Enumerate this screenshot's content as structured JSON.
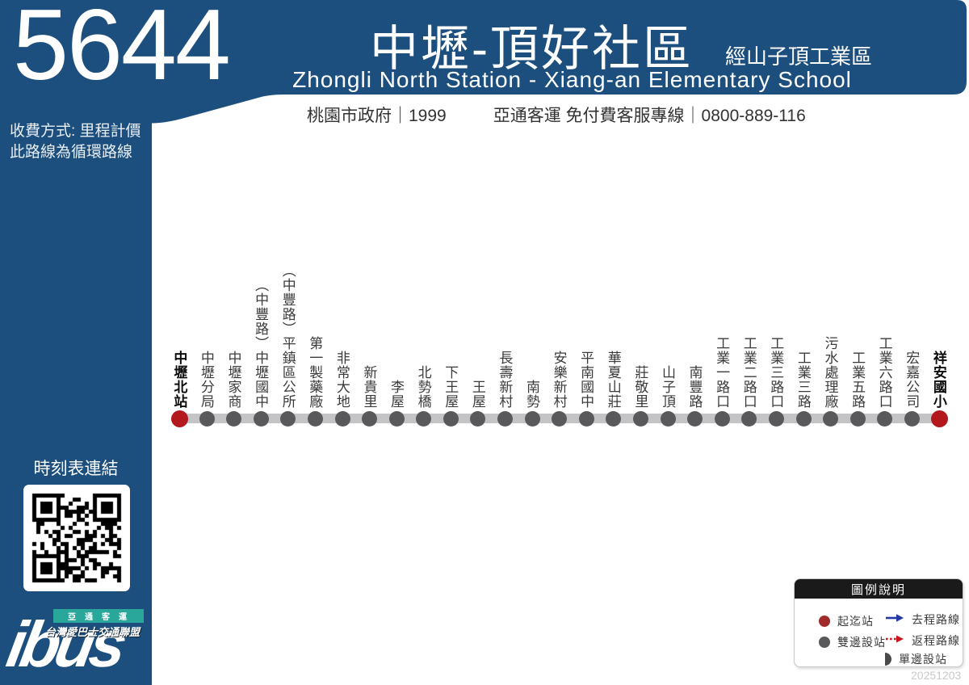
{
  "sidebar": {
    "route_number": "5644",
    "fare_line1": "收費方式: 里程計價",
    "fare_line2": "此路線為循環路線",
    "timetable_label": "時刻表連結",
    "logo": {
      "operator": "亞通客運",
      "alliance": "台灣愛巴士交通聯盟",
      "brand": "ibus"
    }
  },
  "header": {
    "title_zh": "中壢-頂好社區",
    "via": "經山子頂工業區",
    "title_en": "Zhongli North Station - Xiang-an Elementary School",
    "info_left": "桃園市政府｜1999",
    "info_right": "亞通客運 免付費客服專線｜0800-889-116"
  },
  "route": {
    "stops": [
      {
        "name": "中壢北站",
        "terminal": true
      },
      {
        "name": "中壢分局",
        "terminal": false
      },
      {
        "name": "中壢家商",
        "terminal": false
      },
      {
        "name": "（中豐路）中壢國中",
        "terminal": false
      },
      {
        "name": "（中豐路）平鎮區公所",
        "terminal": false
      },
      {
        "name": "第一製藥廠",
        "terminal": false
      },
      {
        "name": "非常大地",
        "terminal": false
      },
      {
        "name": "新貴里",
        "terminal": false
      },
      {
        "name": "李屋",
        "terminal": false
      },
      {
        "name": "北勢橋",
        "terminal": false
      },
      {
        "name": "下王屋",
        "terminal": false
      },
      {
        "name": "王屋",
        "terminal": false
      },
      {
        "name": "長壽新村",
        "terminal": false
      },
      {
        "name": "南勢",
        "terminal": false
      },
      {
        "name": "安樂新村",
        "terminal": false
      },
      {
        "name": "平南國中",
        "terminal": false
      },
      {
        "name": "華夏山莊",
        "terminal": false
      },
      {
        "name": "莊敬里",
        "terminal": false
      },
      {
        "name": "山子頂",
        "terminal": false
      },
      {
        "name": "南豐路",
        "terminal": false
      },
      {
        "name": "工業一路口",
        "terminal": false
      },
      {
        "name": "工業二路口",
        "terminal": false
      },
      {
        "name": "工業三路口",
        "terminal": false
      },
      {
        "name": "工業三路",
        "terminal": false
      },
      {
        "name": "污水處理廠",
        "terminal": false
      },
      {
        "name": "工業五路",
        "terminal": false
      },
      {
        "name": "工業六路口",
        "terminal": false
      },
      {
        "name": "宏嘉公司",
        "terminal": false
      },
      {
        "name": "祥安國小",
        "terminal": true
      }
    ]
  },
  "legend": {
    "title": "圖例說明",
    "items": [
      {
        "icon": "terminal-dot",
        "label": "起迄站",
        "col": "left",
        "row": 0
      },
      {
        "icon": "both-sides-dot",
        "label": "雙邊設站",
        "col": "left",
        "row": 1
      },
      {
        "icon": "outbound-arrow",
        "label": "去程路線",
        "col": "right",
        "row": 0
      },
      {
        "icon": "return-arrow",
        "label": "返程路線",
        "col": "right",
        "row": 1
      },
      {
        "icon": "single-side",
        "label": "單邊設站",
        "col": "right",
        "row": 2
      }
    ]
  },
  "footer": {
    "date": "20251203"
  },
  "colors": {
    "brand_blue": "#1C4F7E",
    "line_gray": "#C4C4C6",
    "stop_gray": "#59585A",
    "terminal_red": "#B2181D",
    "legend_start_red": "#A12A2B",
    "outbound_blue": "#2438A5",
    "return_red": "#C4161C",
    "logo_teal": "#2AA79B",
    "legend_header_black": "#1A1A1A",
    "date_gray": "#C9C9C9"
  }
}
